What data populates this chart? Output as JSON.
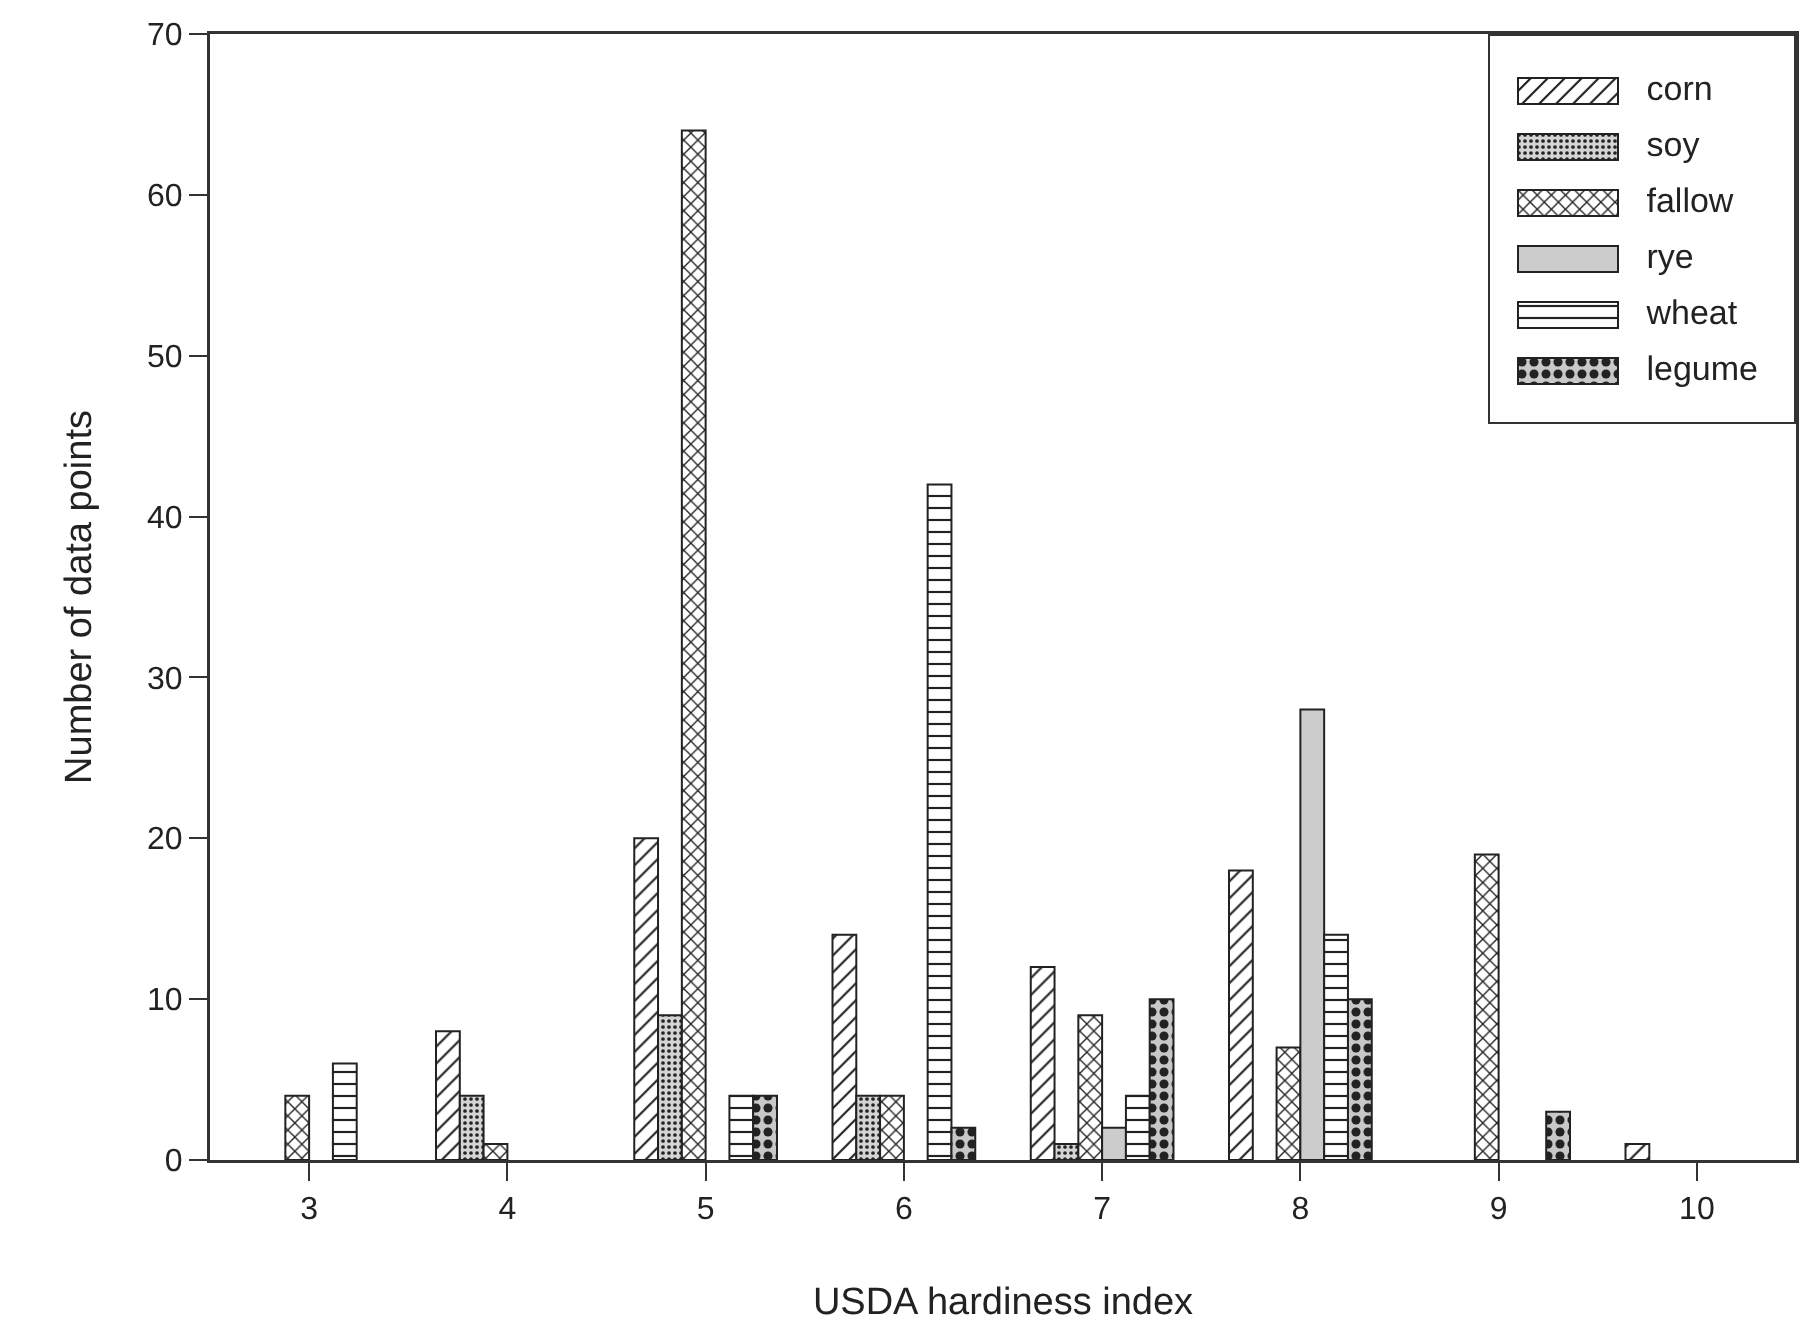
{
  "chart_data": {
    "type": "bar",
    "xlabel": "USDA hardiness index",
    "ylabel": "Number of data points",
    "categories": [
      "3",
      "4",
      "5",
      "6",
      "7",
      "8",
      "9",
      "10"
    ],
    "series": [
      {
        "name": "corn",
        "color": "#222222",
        "values": [
          null,
          8,
          20,
          14,
          12,
          18,
          null,
          1
        ]
      },
      {
        "name": "soy",
        "color": "#222222",
        "values": [
          null,
          4,
          9,
          4,
          1,
          null,
          null,
          null
        ]
      },
      {
        "name": "fallow",
        "color": "#222222",
        "values": [
          4,
          1,
          64,
          4,
          9,
          7,
          19,
          null
        ]
      },
      {
        "name": "rye",
        "color": "#cccccc",
        "values": [
          null,
          null,
          null,
          null,
          2,
          28,
          null,
          null
        ]
      },
      {
        "name": "wheat",
        "color": "#222222",
        "values": [
          6,
          null,
          4,
          42,
          4,
          14,
          null,
          null
        ]
      },
      {
        "name": "legume",
        "color": "#222222",
        "values": [
          null,
          null,
          4,
          2,
          10,
          10,
          3,
          null
        ]
      }
    ],
    "ylim": [
      0,
      70
    ],
    "yticks": [
      0,
      10,
      20,
      30,
      40,
      50,
      60,
      70
    ],
    "grid": false,
    "legend": "top right"
  }
}
